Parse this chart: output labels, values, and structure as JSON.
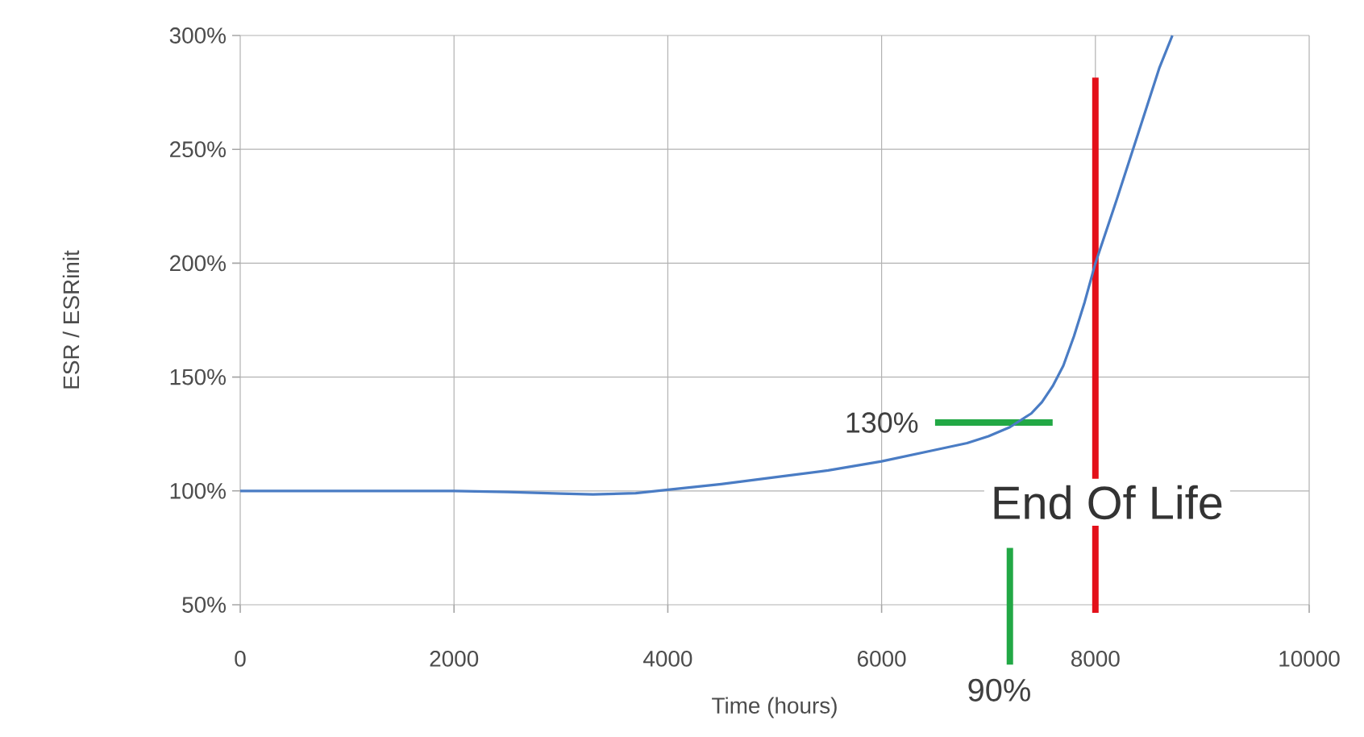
{
  "chart_data": {
    "type": "line",
    "xlabel": "Time (hours)",
    "ylabel": "ESR / ESRinit",
    "x": [
      0,
      1000,
      2000,
      2500,
      3000,
      3300,
      3700,
      4000,
      4500,
      5000,
      5500,
      6000,
      6500,
      6800,
      7000,
      7200,
      7400,
      7500,
      7600,
      7700,
      7800,
      7900,
      8000,
      8200,
      8400,
      8600,
      8720
    ],
    "series": [
      {
        "color": "#4a7cc4",
        "values": [
          100,
          100,
          100,
          99.5,
          98.8,
          98.5,
          99,
          100.5,
          103,
          106,
          109,
          113,
          118,
          121,
          124,
          128,
          134,
          139,
          146,
          155,
          168,
          183,
          200,
          228,
          257,
          286,
          300
        ]
      }
    ],
    "xlim": [
      0,
      10000
    ],
    "xticks": [
      0,
      2000,
      4000,
      6000,
      8000,
      10000
    ],
    "ylim": [
      50,
      300
    ],
    "yticks": [
      {
        "value": 50,
        "label": "50%"
      },
      {
        "value": 100,
        "label": "100%"
      },
      {
        "value": 150,
        "label": "150%"
      },
      {
        "value": 200,
        "label": "200%"
      },
      {
        "value": 250,
        "label": "250%"
      },
      {
        "value": 300,
        "label": "300%"
      }
    ],
    "grid": true,
    "marker": "none",
    "line_style": "solid",
    "ref_lines": [
      {
        "axis": "x",
        "value": 8000,
        "label": "End Of Life",
        "color": "#e3101a"
      },
      {
        "axis": "y",
        "value": 130,
        "label": "130%",
        "color": "#22a845"
      },
      {
        "axis": "x",
        "value": 7200,
        "color": "#22a845"
      }
    ],
    "annotations": [
      "90%"
    ]
  }
}
